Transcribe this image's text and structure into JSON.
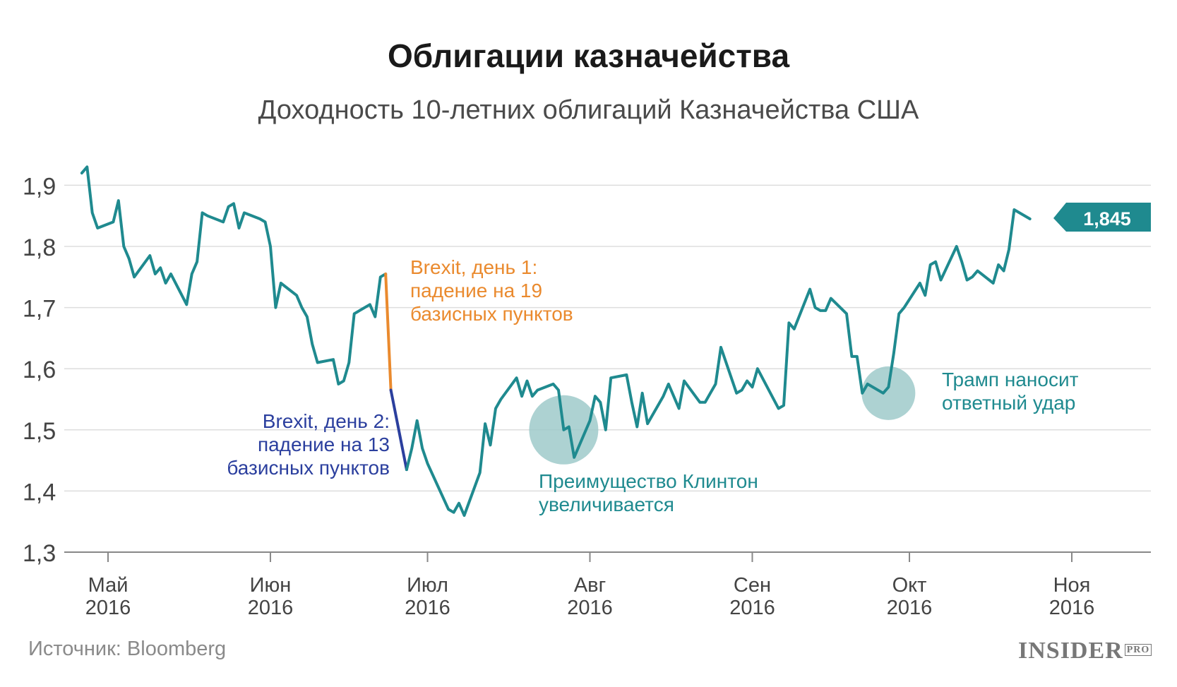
{
  "title": "Облигации казначейства",
  "subtitle": "Доходность 10-летних облигаций Казначейства США",
  "source": "Источник: Bloomberg",
  "logo": "INSIDER",
  "logo_sub": "PRO",
  "colors": {
    "line": "#1f8a8f",
    "brexit_day1": "#ea8a2e",
    "brexit_day2": "#2b3f9e",
    "annotation": "#1f8a8f",
    "bubble": "#9fcaca",
    "grid": "#dddddd",
    "axis": "#888888"
  },
  "chart_data": {
    "type": "line",
    "title": "Облигации казначейства",
    "subtitle": "Доходность 10-летних облигаций Казначейства США",
    "xlabel": "",
    "ylabel": "",
    "ylim": [
      1.3,
      1.95
    ],
    "y_ticks": [
      "1,3",
      "1,4",
      "1,5",
      "1,6",
      "1,7",
      "1,8",
      "1,9"
    ],
    "x_ticks": [
      {
        "month": "Май",
        "year": "2016"
      },
      {
        "month": "Июн",
        "year": "2016"
      },
      {
        "month": "Июл",
        "year": "2016"
      },
      {
        "month": "Авг",
        "year": "2016"
      },
      {
        "month": "Сен",
        "year": "2016"
      },
      {
        "month": "Окт",
        "year": "2016"
      },
      {
        "month": "Ноя",
        "year": "2016"
      }
    ],
    "grid": true,
    "last_value_label": "1,845",
    "series": [
      {
        "values": [
          [
            "2016-04-26",
            1.92
          ],
          [
            "2016-04-27",
            1.93
          ],
          [
            "2016-04-28",
            1.855
          ],
          [
            "2016-04-29",
            1.83
          ],
          [
            "2016-05-02",
            1.84
          ],
          [
            "2016-05-03",
            1.875
          ],
          [
            "2016-05-04",
            1.8
          ],
          [
            "2016-05-05",
            1.78
          ],
          [
            "2016-05-06",
            1.75
          ],
          [
            "2016-05-09",
            1.785
          ],
          [
            "2016-05-10",
            1.755
          ],
          [
            "2016-05-11",
            1.765
          ],
          [
            "2016-05-12",
            1.74
          ],
          [
            "2016-05-13",
            1.755
          ],
          [
            "2016-05-16",
            1.705
          ],
          [
            "2016-05-17",
            1.755
          ],
          [
            "2016-05-18",
            1.775
          ],
          [
            "2016-05-19",
            1.855
          ],
          [
            "2016-05-20",
            1.85
          ],
          [
            "2016-05-23",
            1.84
          ],
          [
            "2016-05-24",
            1.865
          ],
          [
            "2016-05-25",
            1.87
          ],
          [
            "2016-05-26",
            1.83
          ],
          [
            "2016-05-27",
            1.855
          ],
          [
            "2016-05-30",
            1.845
          ],
          [
            "2016-05-31",
            1.84
          ],
          [
            "2016-06-01",
            1.8
          ],
          [
            "2016-06-02",
            1.7
          ],
          [
            "2016-06-03",
            1.74
          ],
          [
            "2016-06-06",
            1.72
          ],
          [
            "2016-06-07",
            1.7
          ],
          [
            "2016-06-08",
            1.685
          ],
          [
            "2016-06-09",
            1.64
          ],
          [
            "2016-06-10",
            1.61
          ],
          [
            "2016-06-13",
            1.615
          ],
          [
            "2016-06-14",
            1.575
          ],
          [
            "2016-06-15",
            1.58
          ],
          [
            "2016-06-16",
            1.61
          ],
          [
            "2016-06-17",
            1.69
          ],
          [
            "2016-06-20",
            1.705
          ],
          [
            "2016-06-21",
            1.685
          ],
          [
            "2016-06-22",
            1.75
          ],
          [
            "2016-06-23",
            1.755
          ]
        ]
      },
      {
        "name": "Brexit, день 1: падение на 19 базисных пунктов",
        "values": [
          [
            "2016-06-23",
            1.755
          ],
          [
            "2016-06-24",
            1.565
          ]
        ]
      },
      {
        "name": "Brexit, день 2: падение на 13 базисных пунктов",
        "values": [
          [
            "2016-06-24",
            1.565
          ],
          [
            "2016-06-27",
            1.435
          ]
        ]
      },
      {
        "values": [
          [
            "2016-06-27",
            1.435
          ],
          [
            "2016-06-28",
            1.47
          ],
          [
            "2016-06-29",
            1.515
          ],
          [
            "2016-06-30",
            1.47
          ],
          [
            "2016-07-01",
            1.445
          ],
          [
            "2016-07-05",
            1.37
          ],
          [
            "2016-07-06",
            1.365
          ],
          [
            "2016-07-07",
            1.38
          ],
          [
            "2016-07-08",
            1.36
          ],
          [
            "2016-07-11",
            1.43
          ],
          [
            "2016-07-12",
            1.51
          ],
          [
            "2016-07-13",
            1.475
          ],
          [
            "2016-07-14",
            1.535
          ],
          [
            "2016-07-15",
            1.55
          ],
          [
            "2016-07-18",
            1.585
          ],
          [
            "2016-07-19",
            1.555
          ],
          [
            "2016-07-20",
            1.58
          ],
          [
            "2016-07-21",
            1.555
          ],
          [
            "2016-07-22",
            1.565
          ],
          [
            "2016-07-25",
            1.575
          ],
          [
            "2016-07-26",
            1.565
          ],
          [
            "2016-07-27",
            1.5
          ],
          [
            "2016-07-28",
            1.505
          ],
          [
            "2016-07-29",
            1.455
          ],
          [
            "2016-08-01",
            1.515
          ],
          [
            "2016-08-02",
            1.555
          ],
          [
            "2016-08-03",
            1.545
          ],
          [
            "2016-08-04",
            1.5
          ],
          [
            "2016-08-05",
            1.585
          ],
          [
            "2016-08-08",
            1.59
          ],
          [
            "2016-08-09",
            1.545
          ],
          [
            "2016-08-10",
            1.505
          ],
          [
            "2016-08-11",
            1.56
          ],
          [
            "2016-08-12",
            1.51
          ],
          [
            "2016-08-15",
            1.555
          ],
          [
            "2016-08-16",
            1.575
          ],
          [
            "2016-08-17",
            1.555
          ],
          [
            "2016-08-18",
            1.535
          ],
          [
            "2016-08-19",
            1.58
          ],
          [
            "2016-08-22",
            1.545
          ],
          [
            "2016-08-23",
            1.545
          ],
          [
            "2016-08-24",
            1.56
          ],
          [
            "2016-08-25",
            1.575
          ],
          [
            "2016-08-26",
            1.635
          ],
          [
            "2016-08-29",
            1.56
          ],
          [
            "2016-08-30",
            1.565
          ],
          [
            "2016-08-31",
            1.58
          ],
          [
            "2016-09-01",
            1.57
          ],
          [
            "2016-09-02",
            1.6
          ],
          [
            "2016-09-06",
            1.535
          ],
          [
            "2016-09-07",
            1.54
          ],
          [
            "2016-09-08",
            1.675
          ],
          [
            "2016-09-09",
            1.665
          ],
          [
            "2016-09-12",
            1.73
          ],
          [
            "2016-09-13",
            1.7
          ],
          [
            "2016-09-14",
            1.695
          ],
          [
            "2016-09-15",
            1.695
          ],
          [
            "2016-09-16",
            1.715
          ],
          [
            "2016-09-19",
            1.69
          ],
          [
            "2016-09-20",
            1.62
          ],
          [
            "2016-09-21",
            1.62
          ],
          [
            "2016-09-22",
            1.56
          ],
          [
            "2016-09-23",
            1.575
          ],
          [
            "2016-09-26",
            1.56
          ],
          [
            "2016-09-27",
            1.57
          ],
          [
            "2016-09-28",
            1.625
          ],
          [
            "2016-09-29",
            1.69
          ],
          [
            "2016-09-30",
            1.7
          ],
          [
            "2016-10-03",
            1.74
          ],
          [
            "2016-10-04",
            1.72
          ],
          [
            "2016-10-05",
            1.77
          ],
          [
            "2016-10-06",
            1.775
          ],
          [
            "2016-10-07",
            1.745
          ],
          [
            "2016-10-10",
            1.8
          ],
          [
            "2016-10-11",
            1.775
          ],
          [
            "2016-10-12",
            1.745
          ],
          [
            "2016-10-13",
            1.75
          ],
          [
            "2016-10-14",
            1.76
          ],
          [
            "2016-10-17",
            1.74
          ],
          [
            "2016-10-18",
            1.77
          ],
          [
            "2016-10-19",
            1.76
          ],
          [
            "2016-10-20",
            1.795
          ],
          [
            "2016-10-21",
            1.86
          ],
          [
            "2016-10-24",
            1.845
          ]
        ]
      }
    ],
    "annotations": [
      {
        "text_lines": [
          "Brexit, день 1:",
          "падение на 19",
          "базисных пунктов"
        ]
      },
      {
        "text_lines": [
          "Brexit, день 2:",
          "падение на 13",
          "базисных пунктов"
        ]
      },
      {
        "text_lines": [
          "Преимущество Клинтон",
          "увеличивается"
        ],
        "date": "2016-07-27",
        "value": 1.5
      },
      {
        "text_lines": [
          "Трамп наносит",
          "ответный удар"
        ],
        "date": "2016-09-27",
        "value": 1.56
      }
    ]
  }
}
